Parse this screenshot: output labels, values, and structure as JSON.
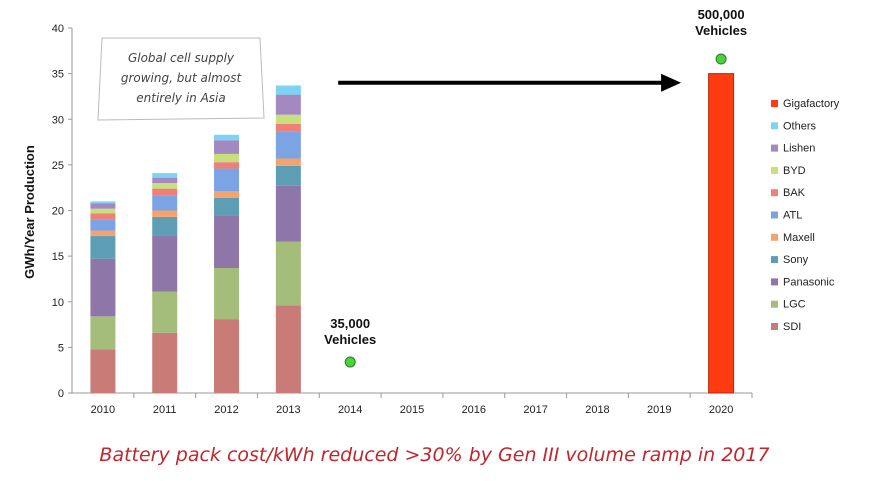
{
  "chart_data": {
    "type": "bar",
    "stacked": true,
    "title": "",
    "xlabel": "",
    "ylabel": "GWh/Year Production",
    "ylim": [
      0,
      40
    ],
    "yticks": [
      0,
      5,
      10,
      15,
      20,
      25,
      30,
      35,
      40
    ],
    "categories": [
      "2010",
      "2011",
      "2012",
      "2013",
      "2014",
      "2015",
      "2016",
      "2017",
      "2018",
      "2019",
      "2020"
    ],
    "series": [
      {
        "name": "SDI",
        "color": "#c97b77",
        "values": [
          4.8,
          6.6,
          8.1,
          9.6,
          null,
          null,
          null,
          null,
          null,
          null,
          null
        ]
      },
      {
        "name": "LGC",
        "color": "#a4bd7b",
        "values": [
          3.6,
          4.5,
          5.6,
          7.0,
          null,
          null,
          null,
          null,
          null,
          null,
          null
        ]
      },
      {
        "name": "Panasonic",
        "color": "#8e76a8",
        "values": [
          6.3,
          6.2,
          5.7,
          6.1,
          null,
          null,
          null,
          null,
          null,
          null,
          null
        ]
      },
      {
        "name": "Sony",
        "color": "#5e9eb5",
        "values": [
          2.5,
          2.0,
          2.0,
          2.2,
          null,
          null,
          null,
          null,
          null,
          null,
          null
        ]
      },
      {
        "name": "Maxell",
        "color": "#f4a36e",
        "values": [
          0.6,
          0.7,
          0.7,
          0.8,
          null,
          null,
          null,
          null,
          null,
          null,
          null
        ]
      },
      {
        "name": "ATL",
        "color": "#7ca3e4",
        "values": [
          1.2,
          1.6,
          2.5,
          3.0,
          null,
          null,
          null,
          null,
          null,
          null,
          null
        ]
      },
      {
        "name": "BAK",
        "color": "#ef8078",
        "values": [
          0.7,
          0.8,
          0.7,
          0.8,
          null,
          null,
          null,
          null,
          null,
          null,
          null
        ]
      },
      {
        "name": "BYD",
        "color": "#c6e07c",
        "values": [
          0.5,
          0.6,
          0.9,
          1.0,
          null,
          null,
          null,
          null,
          null,
          null,
          null
        ]
      },
      {
        "name": "Lishen",
        "color": "#a389bf",
        "values": [
          0.6,
          0.6,
          1.5,
          2.2,
          null,
          null,
          null,
          null,
          null,
          null,
          null
        ]
      },
      {
        "name": "Others",
        "color": "#7cd3f2",
        "values": [
          0.2,
          0.5,
          0.6,
          1.0,
          null,
          null,
          null,
          null,
          null,
          null,
          null
        ]
      },
      {
        "name": "Gigafactory",
        "color": "#ff3b12",
        "values": [
          null,
          null,
          null,
          null,
          null,
          null,
          null,
          null,
          null,
          null,
          35
        ]
      }
    ],
    "legend_order": [
      "Gigafactory",
      "Others",
      "Lishen",
      "BYD",
      "BAK",
      "ATL",
      "Maxell",
      "Sony",
      "Panasonic",
      "LGC",
      "SDI"
    ],
    "legend_position": "right",
    "vehicle_markers": [
      {
        "x": "2014",
        "y": 3.4,
        "label_line1": "35,000",
        "label_line2": "Vehicles",
        "color": "#4dd13a"
      },
      {
        "x": "2020",
        "y": 36.6,
        "label_line1": "500,000",
        "label_line2": "Vehicles",
        "color": "#4dd13a"
      }
    ],
    "callout": {
      "lines": [
        "Global cell supply",
        "growing, but almost",
        "entirely in Asia"
      ]
    },
    "arrow": {
      "from": "2014",
      "to": "2020",
      "y": 34.0
    }
  },
  "footer": {
    "text": "Battery pack cost/kWh reduced >30% by Gen III volume ramp in 2017"
  },
  "colors": {
    "axis": "#999999",
    "arrow": "#000000",
    "footer": "#c0272d"
  }
}
